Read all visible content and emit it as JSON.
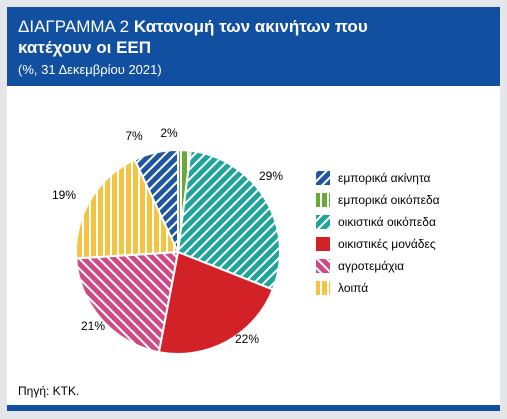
{
  "header": {
    "title_prefix": "ΔΙΑΓΡΑΜΜΑ 2",
    "title_main_line1": "Κατανομή των ακινήτων που",
    "title_main_line2": "κατέχουν οι ΕΕΠ",
    "subtitle": "(%, 31 Δεκεμβρίου 2021)"
  },
  "footer": {
    "source": "Πηγή: ΚΤΚ."
  },
  "colors": {
    "header_bg": "#114fa0",
    "background": "#e4e6ea"
  },
  "chart_data": {
    "type": "pie",
    "title": "ΔΙΑΓΡΑΜΜΑ 2 Κατανομή των ακινήτων που κατέχουν οι ΕΕΠ",
    "subtitle": "(%, 31 Δεκεμβρίου 2021)",
    "legend_position": "right",
    "slices": [
      {
        "name": "εμπορικά ακίνητα",
        "value": 7,
        "label": "7%",
        "color": "#1e56a0"
      },
      {
        "name": "εμπορικά οικόπεδα",
        "value": 2,
        "label": "2%",
        "color": "#6aa839"
      },
      {
        "name": "οικιστικά οικόπεδα",
        "value": 29,
        "label": "29%",
        "color": "#1fa39a"
      },
      {
        "name": "οικιστικές μονάδες",
        "value": 22,
        "label": "22%",
        "color": "#d32128"
      },
      {
        "name": "αγροτεμάχια",
        "value": 21,
        "label": "21%",
        "color": "#cf4a85"
      },
      {
        "name": "λοιπά",
        "value": 19,
        "label": "19%",
        "color": "#f3c443"
      }
    ]
  }
}
